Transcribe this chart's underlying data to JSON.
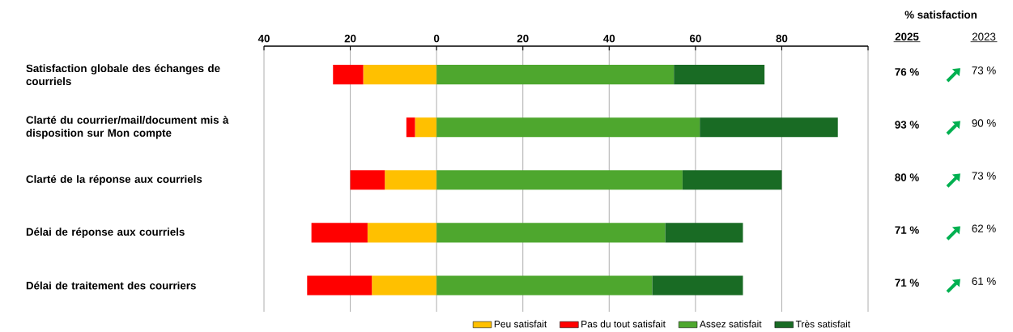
{
  "chart_data": {
    "type": "bar",
    "orientation": "horizontal",
    "stacked": true,
    "categories": [
      "Satisfaction globale des échanges de courriels",
      "Clarté du courrier/mail/document mis à disposition sur Mon compte",
      "Clarté de la réponse aux courriels",
      "Délai de réponse aux courriels",
      "Délai de traitement des courriers"
    ],
    "series": [
      {
        "name": "Peu satisfait",
        "color": "#ffc000",
        "values": [
          -17,
          -5,
          -12,
          -16,
          -15
        ]
      },
      {
        "name": "Pas du tout satisfait",
        "color": "#ff0000",
        "values": [
          -7,
          -2,
          -8,
          -13,
          -15
        ]
      },
      {
        "name": "Assez satisfait",
        "color": "#4ea72e",
        "values": [
          55,
          61,
          57,
          53,
          50
        ]
      },
      {
        "name": "Très satisfait",
        "color": "#196b24",
        "values": [
          21,
          32,
          23,
          18,
          21
        ]
      }
    ],
    "xlim": [
      -40,
      100
    ],
    "xticks": [
      {
        "value": -40,
        "label": "40"
      },
      {
        "value": -20,
        "label": "20"
      },
      0,
      20,
      40,
      60,
      80,
      {
        "value": 100,
        "label": null
      }
    ],
    "grid": "x",
    "legend": "bottom",
    "annotations": [
      "% satisfaction",
      "2025",
      "2023",
      "76 %",
      "73 %",
      "93 %",
      "90 %",
      "80 %",
      "73 %",
      "71 %",
      "62 %",
      "71 %",
      "61 %"
    ]
  }
}
